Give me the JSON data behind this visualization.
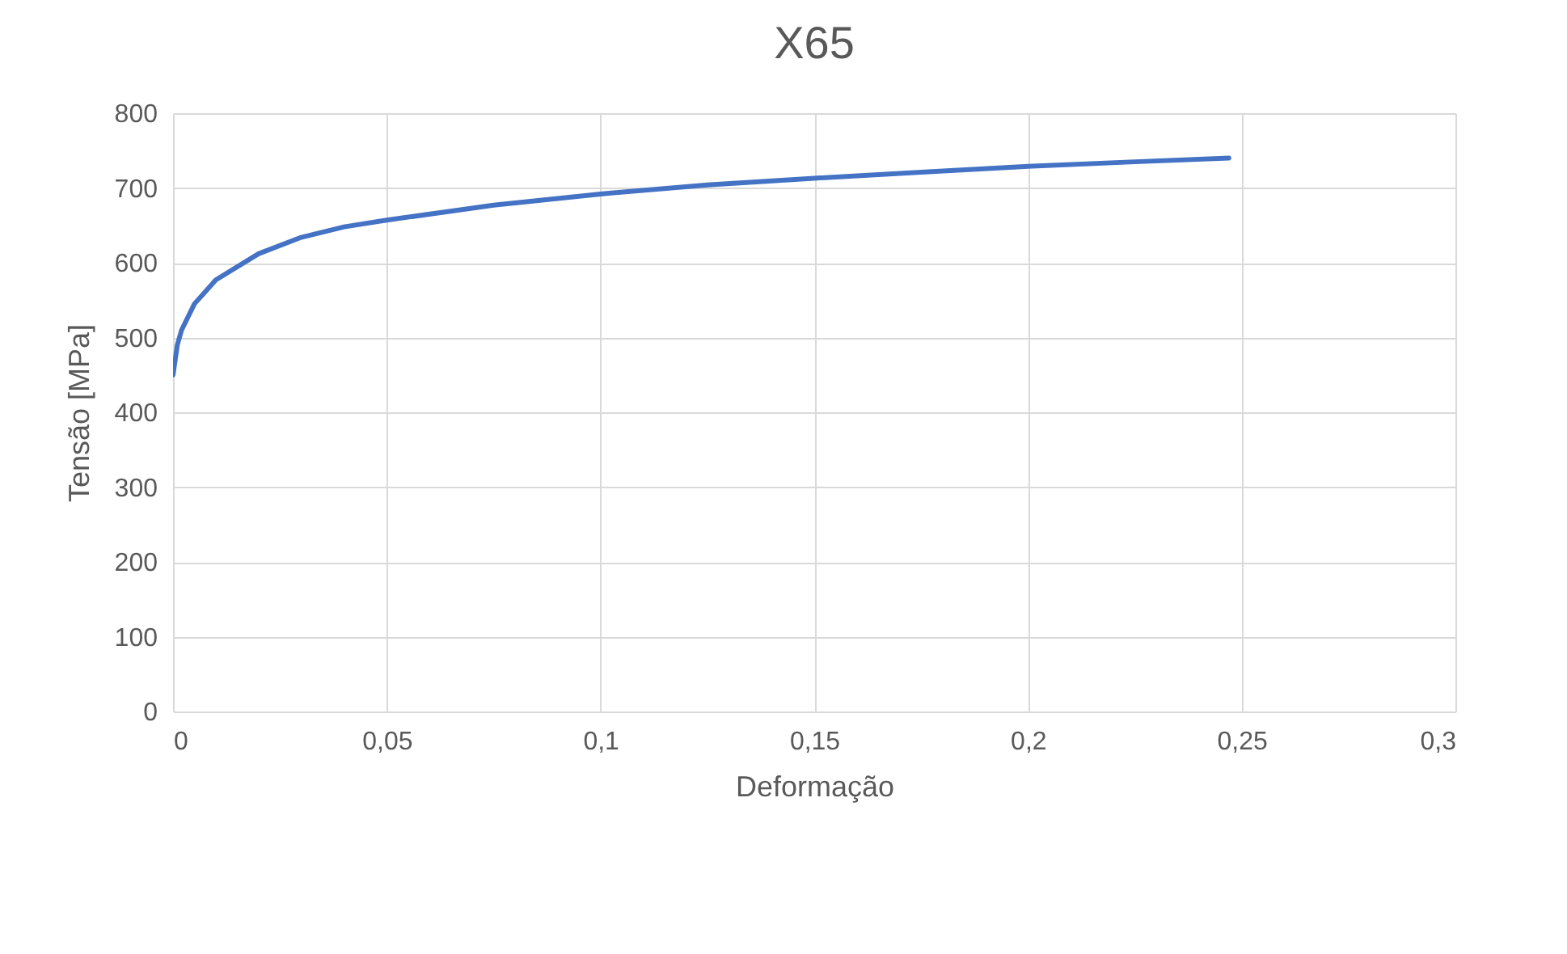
{
  "chart_data": {
    "type": "line",
    "title": "X65",
    "xlabel": "Deformação",
    "ylabel": "Tensão [MPa]",
    "x": [
      0,
      0.001,
      0.002,
      0.005,
      0.01,
      0.02,
      0.03,
      0.04,
      0.05,
      0.075,
      0.1,
      0.125,
      0.15,
      0.175,
      0.2,
      0.225,
      0.247
    ],
    "series": [
      {
        "color": "#4472c4",
        "values": [
          450,
          490,
          510,
          545,
          577,
          612,
          634,
          648,
          657,
          677,
          692,
          704,
          713,
          721,
          729,
          735,
          740
        ]
      }
    ],
    "xlim": [
      0,
      0.3
    ],
    "xticks": [
      0,
      {
        "value": 0.05,
        "label": "0,05"
      },
      {
        "value": 0.1,
        "label": "0,1"
      },
      {
        "value": 0.15,
        "label": "0,15"
      },
      {
        "value": 0.2,
        "label": "0,2"
      },
      {
        "value": 0.25,
        "label": "0,25"
      },
      {
        "value": 0.3,
        "label": "0,3"
      }
    ],
    "ylim": [
      0,
      800
    ],
    "yticks": [
      0,
      100,
      200,
      300,
      400,
      500,
      600,
      700,
      800
    ],
    "grid": true,
    "marker": "none",
    "line_style": "solid"
  }
}
